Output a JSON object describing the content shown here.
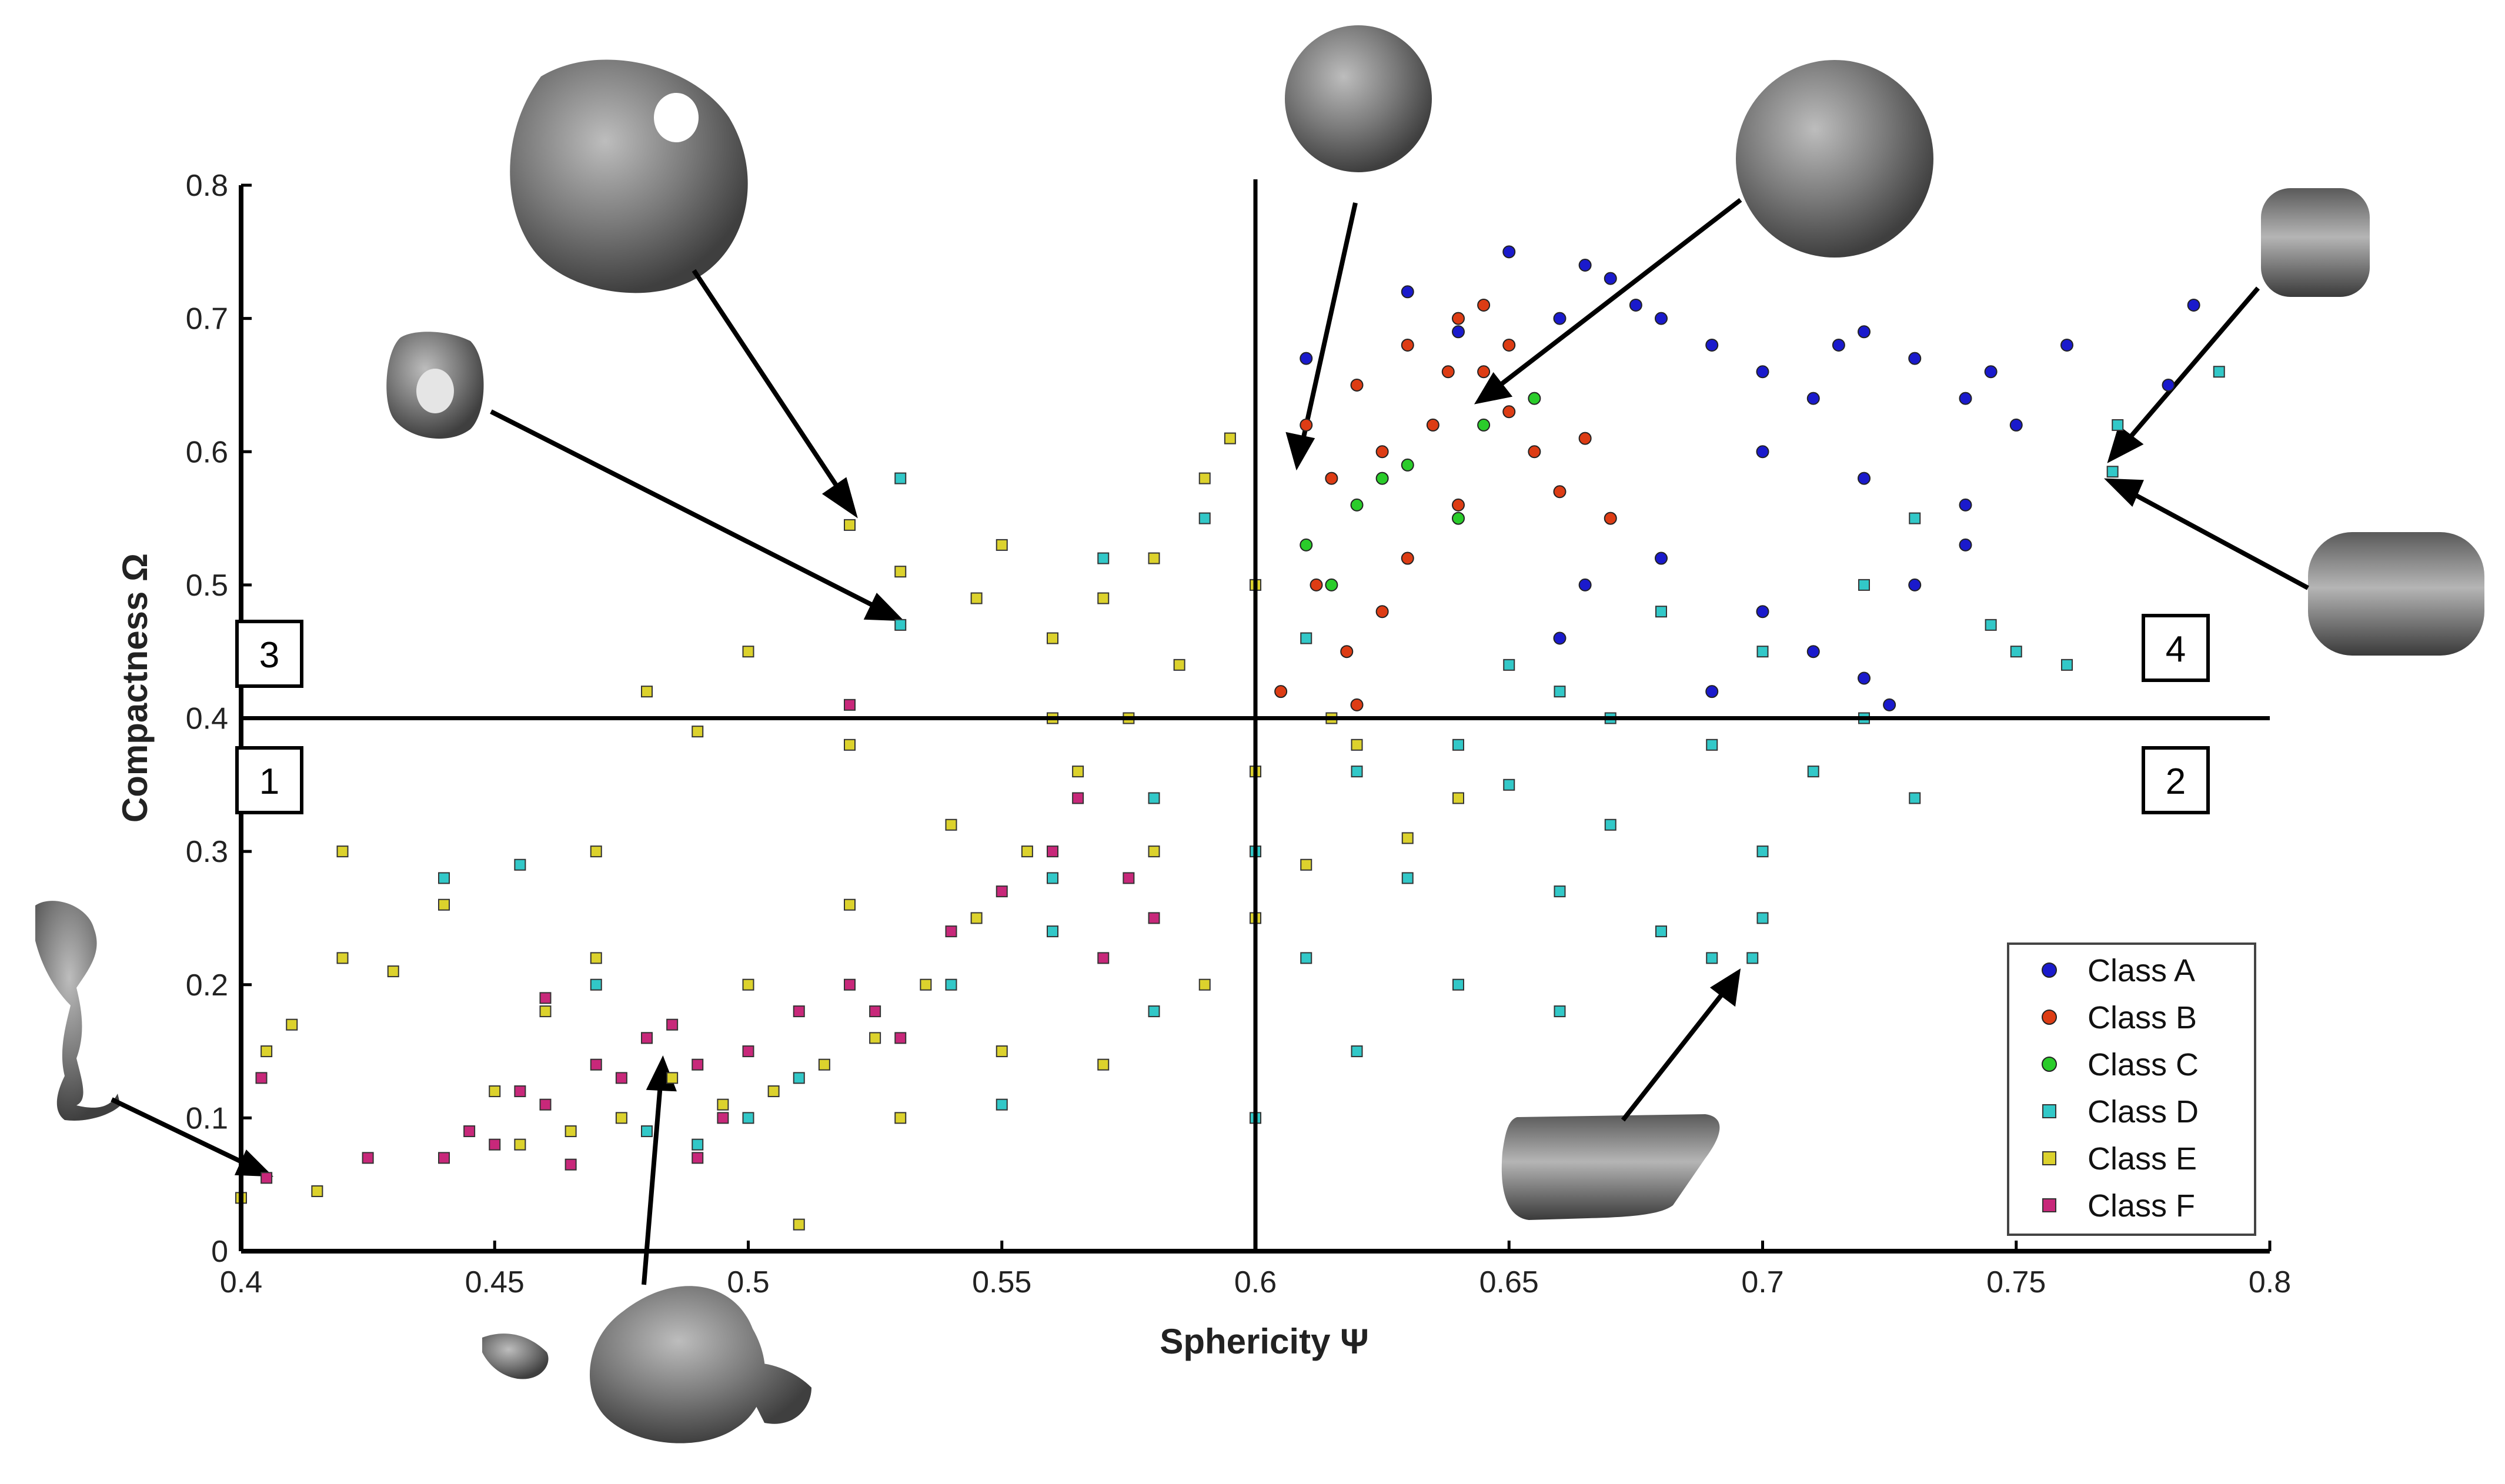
{
  "chart_data": {
    "type": "scatter",
    "title": "",
    "xlabel": "Sphericity Ψ",
    "ylabel": "Compactness Ω",
    "xlim": [
      0.4,
      0.8
    ],
    "ylim": [
      0,
      0.8
    ],
    "x_ticks": [
      "0.4",
      "0.45",
      "0.5",
      "0.55",
      "0.6",
      "0.65",
      "0.7",
      "0.75",
      "0.8"
    ],
    "y_ticks": [
      "0",
      "0.1",
      "0.2",
      "0.3",
      "0.4",
      "0.5",
      "0.6",
      "0.7",
      "0.8"
    ],
    "grid": false,
    "legend_position": "bottom-right",
    "reference_lines": {
      "x": 0.6,
      "y": 0.4
    },
    "quadrant_labels": [
      {
        "text": "1",
        "position": "bottom-left"
      },
      {
        "text": "2",
        "position": "bottom-right"
      },
      {
        "text": "3",
        "position": "top-left"
      },
      {
        "text": "4",
        "position": "top-right"
      }
    ],
    "series": [
      {
        "name": "Class A",
        "color": "#1a1acc",
        "marker": "circle",
        "points": [
          [
            0.61,
            0.67
          ],
          [
            0.63,
            0.72
          ],
          [
            0.64,
            0.69
          ],
          [
            0.65,
            0.75
          ],
          [
            0.66,
            0.7
          ],
          [
            0.665,
            0.74
          ],
          [
            0.67,
            0.73
          ],
          [
            0.675,
            0.71
          ],
          [
            0.68,
            0.7
          ],
          [
            0.69,
            0.68
          ],
          [
            0.7,
            0.66
          ],
          [
            0.71,
            0.64
          ],
          [
            0.715,
            0.68
          ],
          [
            0.72,
            0.69
          ],
          [
            0.73,
            0.67
          ],
          [
            0.74,
            0.64
          ],
          [
            0.745,
            0.66
          ],
          [
            0.75,
            0.62
          ],
          [
            0.76,
            0.68
          ],
          [
            0.785,
            0.71
          ],
          [
            0.78,
            0.65
          ],
          [
            0.7,
            0.6
          ],
          [
            0.72,
            0.58
          ],
          [
            0.74,
            0.56
          ],
          [
            0.68,
            0.52
          ],
          [
            0.7,
            0.48
          ],
          [
            0.71,
            0.45
          ],
          [
            0.69,
            0.42
          ],
          [
            0.66,
            0.46
          ],
          [
            0.665,
            0.5
          ],
          [
            0.72,
            0.43
          ],
          [
            0.725,
            0.41
          ],
          [
            0.73,
            0.5
          ],
          [
            0.74,
            0.53
          ]
        ]
      },
      {
        "name": "Class B",
        "color": "#dd3c14",
        "marker": "circle",
        "points": [
          [
            0.61,
            0.62
          ],
          [
            0.615,
            0.58
          ],
          [
            0.62,
            0.65
          ],
          [
            0.625,
            0.6
          ],
          [
            0.63,
            0.68
          ],
          [
            0.635,
            0.62
          ],
          [
            0.64,
            0.7
          ],
          [
            0.645,
            0.66
          ],
          [
            0.65,
            0.63
          ],
          [
            0.655,
            0.6
          ],
          [
            0.66,
            0.57
          ],
          [
            0.665,
            0.61
          ],
          [
            0.67,
            0.55
          ],
          [
            0.612,
            0.5
          ],
          [
            0.618,
            0.45
          ],
          [
            0.605,
            0.42
          ],
          [
            0.62,
            0.41
          ],
          [
            0.63,
            0.52
          ],
          [
            0.64,
            0.56
          ],
          [
            0.625,
            0.48
          ],
          [
            0.645,
            0.71
          ],
          [
            0.65,
            0.68
          ],
          [
            0.638,
            0.66
          ]
        ]
      },
      {
        "name": "Class C",
        "color": "#2acc2a",
        "marker": "circle",
        "points": [
          [
            0.62,
            0.56
          ],
          [
            0.63,
            0.59
          ],
          [
            0.645,
            0.62
          ],
          [
            0.655,
            0.64
          ],
          [
            0.615,
            0.5
          ],
          [
            0.625,
            0.58
          ],
          [
            0.64,
            0.55
          ],
          [
            0.61,
            0.53
          ]
        ]
      },
      {
        "name": "Class D",
        "color": "#32c8c8",
        "marker": "square",
        "points": [
          [
            0.53,
            0.58
          ],
          [
            0.53,
            0.47
          ],
          [
            0.44,
            0.28
          ],
          [
            0.455,
            0.29
          ],
          [
            0.47,
            0.2
          ],
          [
            0.48,
            0.09
          ],
          [
            0.49,
            0.08
          ],
          [
            0.5,
            0.1
          ],
          [
            0.51,
            0.13
          ],
          [
            0.55,
            0.11
          ],
          [
            0.56,
            0.24
          ],
          [
            0.58,
            0.18
          ],
          [
            0.6,
            0.1
          ],
          [
            0.62,
            0.15
          ],
          [
            0.64,
            0.2
          ],
          [
            0.66,
            0.27
          ],
          [
            0.67,
            0.32
          ],
          [
            0.68,
            0.24
          ],
          [
            0.7,
            0.3
          ],
          [
            0.71,
            0.36
          ],
          [
            0.72,
            0.4
          ],
          [
            0.73,
            0.34
          ],
          [
            0.7,
            0.25
          ],
          [
            0.69,
            0.22
          ],
          [
            0.698,
            0.22
          ],
          [
            0.75,
            0.45
          ],
          [
            0.76,
            0.44
          ],
          [
            0.769,
            0.585
          ],
          [
            0.79,
            0.66
          ],
          [
            0.77,
            0.62
          ],
          [
            0.745,
            0.47
          ],
          [
            0.73,
            0.55
          ],
          [
            0.72,
            0.5
          ],
          [
            0.7,
            0.45
          ],
          [
            0.68,
            0.48
          ],
          [
            0.66,
            0.42
          ],
          [
            0.64,
            0.38
          ],
          [
            0.62,
            0.36
          ],
          [
            0.6,
            0.3
          ],
          [
            0.58,
            0.34
          ],
          [
            0.56,
            0.28
          ],
          [
            0.54,
            0.2
          ],
          [
            0.57,
            0.52
          ],
          [
            0.59,
            0.55
          ],
          [
            0.61,
            0.46
          ],
          [
            0.65,
            0.35
          ],
          [
            0.67,
            0.4
          ],
          [
            0.63,
            0.28
          ],
          [
            0.61,
            0.22
          ],
          [
            0.66,
            0.18
          ],
          [
            0.65,
            0.44
          ],
          [
            0.69,
            0.38
          ]
        ]
      },
      {
        "name": "Class E",
        "color": "#dcd22d",
        "marker": "square",
        "points": [
          [
            0.52,
            0.545
          ],
          [
            0.4,
            0.04
          ],
          [
            0.405,
            0.15
          ],
          [
            0.42,
            0.3
          ],
          [
            0.42,
            0.22
          ],
          [
            0.41,
            0.17
          ],
          [
            0.415,
            0.045
          ],
          [
            0.43,
            0.21
          ],
          [
            0.44,
            0.26
          ],
          [
            0.47,
            0.3
          ],
          [
            0.48,
            0.42
          ],
          [
            0.49,
            0.39
          ],
          [
            0.5,
            0.45
          ],
          [
            0.51,
            0.02
          ],
          [
            0.52,
            0.38
          ],
          [
            0.53,
            0.51
          ],
          [
            0.545,
            0.49
          ],
          [
            0.55,
            0.53
          ],
          [
            0.56,
            0.46
          ],
          [
            0.57,
            0.49
          ],
          [
            0.58,
            0.52
          ],
          [
            0.59,
            0.58
          ],
          [
            0.595,
            0.61
          ],
          [
            0.6,
            0.5
          ],
          [
            0.585,
            0.44
          ],
          [
            0.575,
            0.4
          ],
          [
            0.565,
            0.36
          ],
          [
            0.555,
            0.3
          ],
          [
            0.545,
            0.25
          ],
          [
            0.535,
            0.2
          ],
          [
            0.525,
            0.16
          ],
          [
            0.515,
            0.14
          ],
          [
            0.505,
            0.12
          ],
          [
            0.495,
            0.11
          ],
          [
            0.485,
            0.13
          ],
          [
            0.475,
            0.1
          ],
          [
            0.465,
            0.09
          ],
          [
            0.455,
            0.08
          ],
          [
            0.45,
            0.12
          ],
          [
            0.46,
            0.18
          ],
          [
            0.47,
            0.22
          ],
          [
            0.48,
            0.16
          ],
          [
            0.5,
            0.2
          ],
          [
            0.52,
            0.26
          ],
          [
            0.54,
            0.32
          ],
          [
            0.56,
            0.4
          ],
          [
            0.58,
            0.3
          ],
          [
            0.6,
            0.36
          ],
          [
            0.62,
            0.38
          ],
          [
            0.64,
            0.34
          ],
          [
            0.6,
            0.25
          ],
          [
            0.59,
            0.2
          ],
          [
            0.57,
            0.14
          ],
          [
            0.55,
            0.15
          ],
          [
            0.53,
            0.1
          ],
          [
            0.61,
            0.29
          ],
          [
            0.63,
            0.31
          ],
          [
            0.615,
            0.4
          ]
        ]
      },
      {
        "name": "Class F",
        "color": "#c8287a",
        "marker": "square",
        "points": [
          [
            0.405,
            0.055
          ],
          [
            0.404,
            0.13
          ],
          [
            0.425,
            0.07
          ],
          [
            0.44,
            0.07
          ],
          [
            0.445,
            0.09
          ],
          [
            0.45,
            0.08
          ],
          [
            0.455,
            0.12
          ],
          [
            0.46,
            0.11
          ],
          [
            0.465,
            0.065
          ],
          [
            0.47,
            0.14
          ],
          [
            0.475,
            0.13
          ],
          [
            0.48,
            0.16
          ],
          [
            0.485,
            0.17
          ],
          [
            0.49,
            0.14
          ],
          [
            0.495,
            0.1
          ],
          [
            0.5,
            0.15
          ],
          [
            0.51,
            0.18
          ],
          [
            0.52,
            0.2
          ],
          [
            0.525,
            0.18
          ],
          [
            0.53,
            0.16
          ],
          [
            0.54,
            0.24
          ],
          [
            0.55,
            0.27
          ],
          [
            0.56,
            0.3
          ],
          [
            0.565,
            0.34
          ],
          [
            0.57,
            0.22
          ],
          [
            0.575,
            0.28
          ],
          [
            0.58,
            0.25
          ],
          [
            0.52,
            0.41
          ],
          [
            0.46,
            0.19
          ],
          [
            0.49,
            0.07
          ]
        ]
      }
    ]
  }
}
